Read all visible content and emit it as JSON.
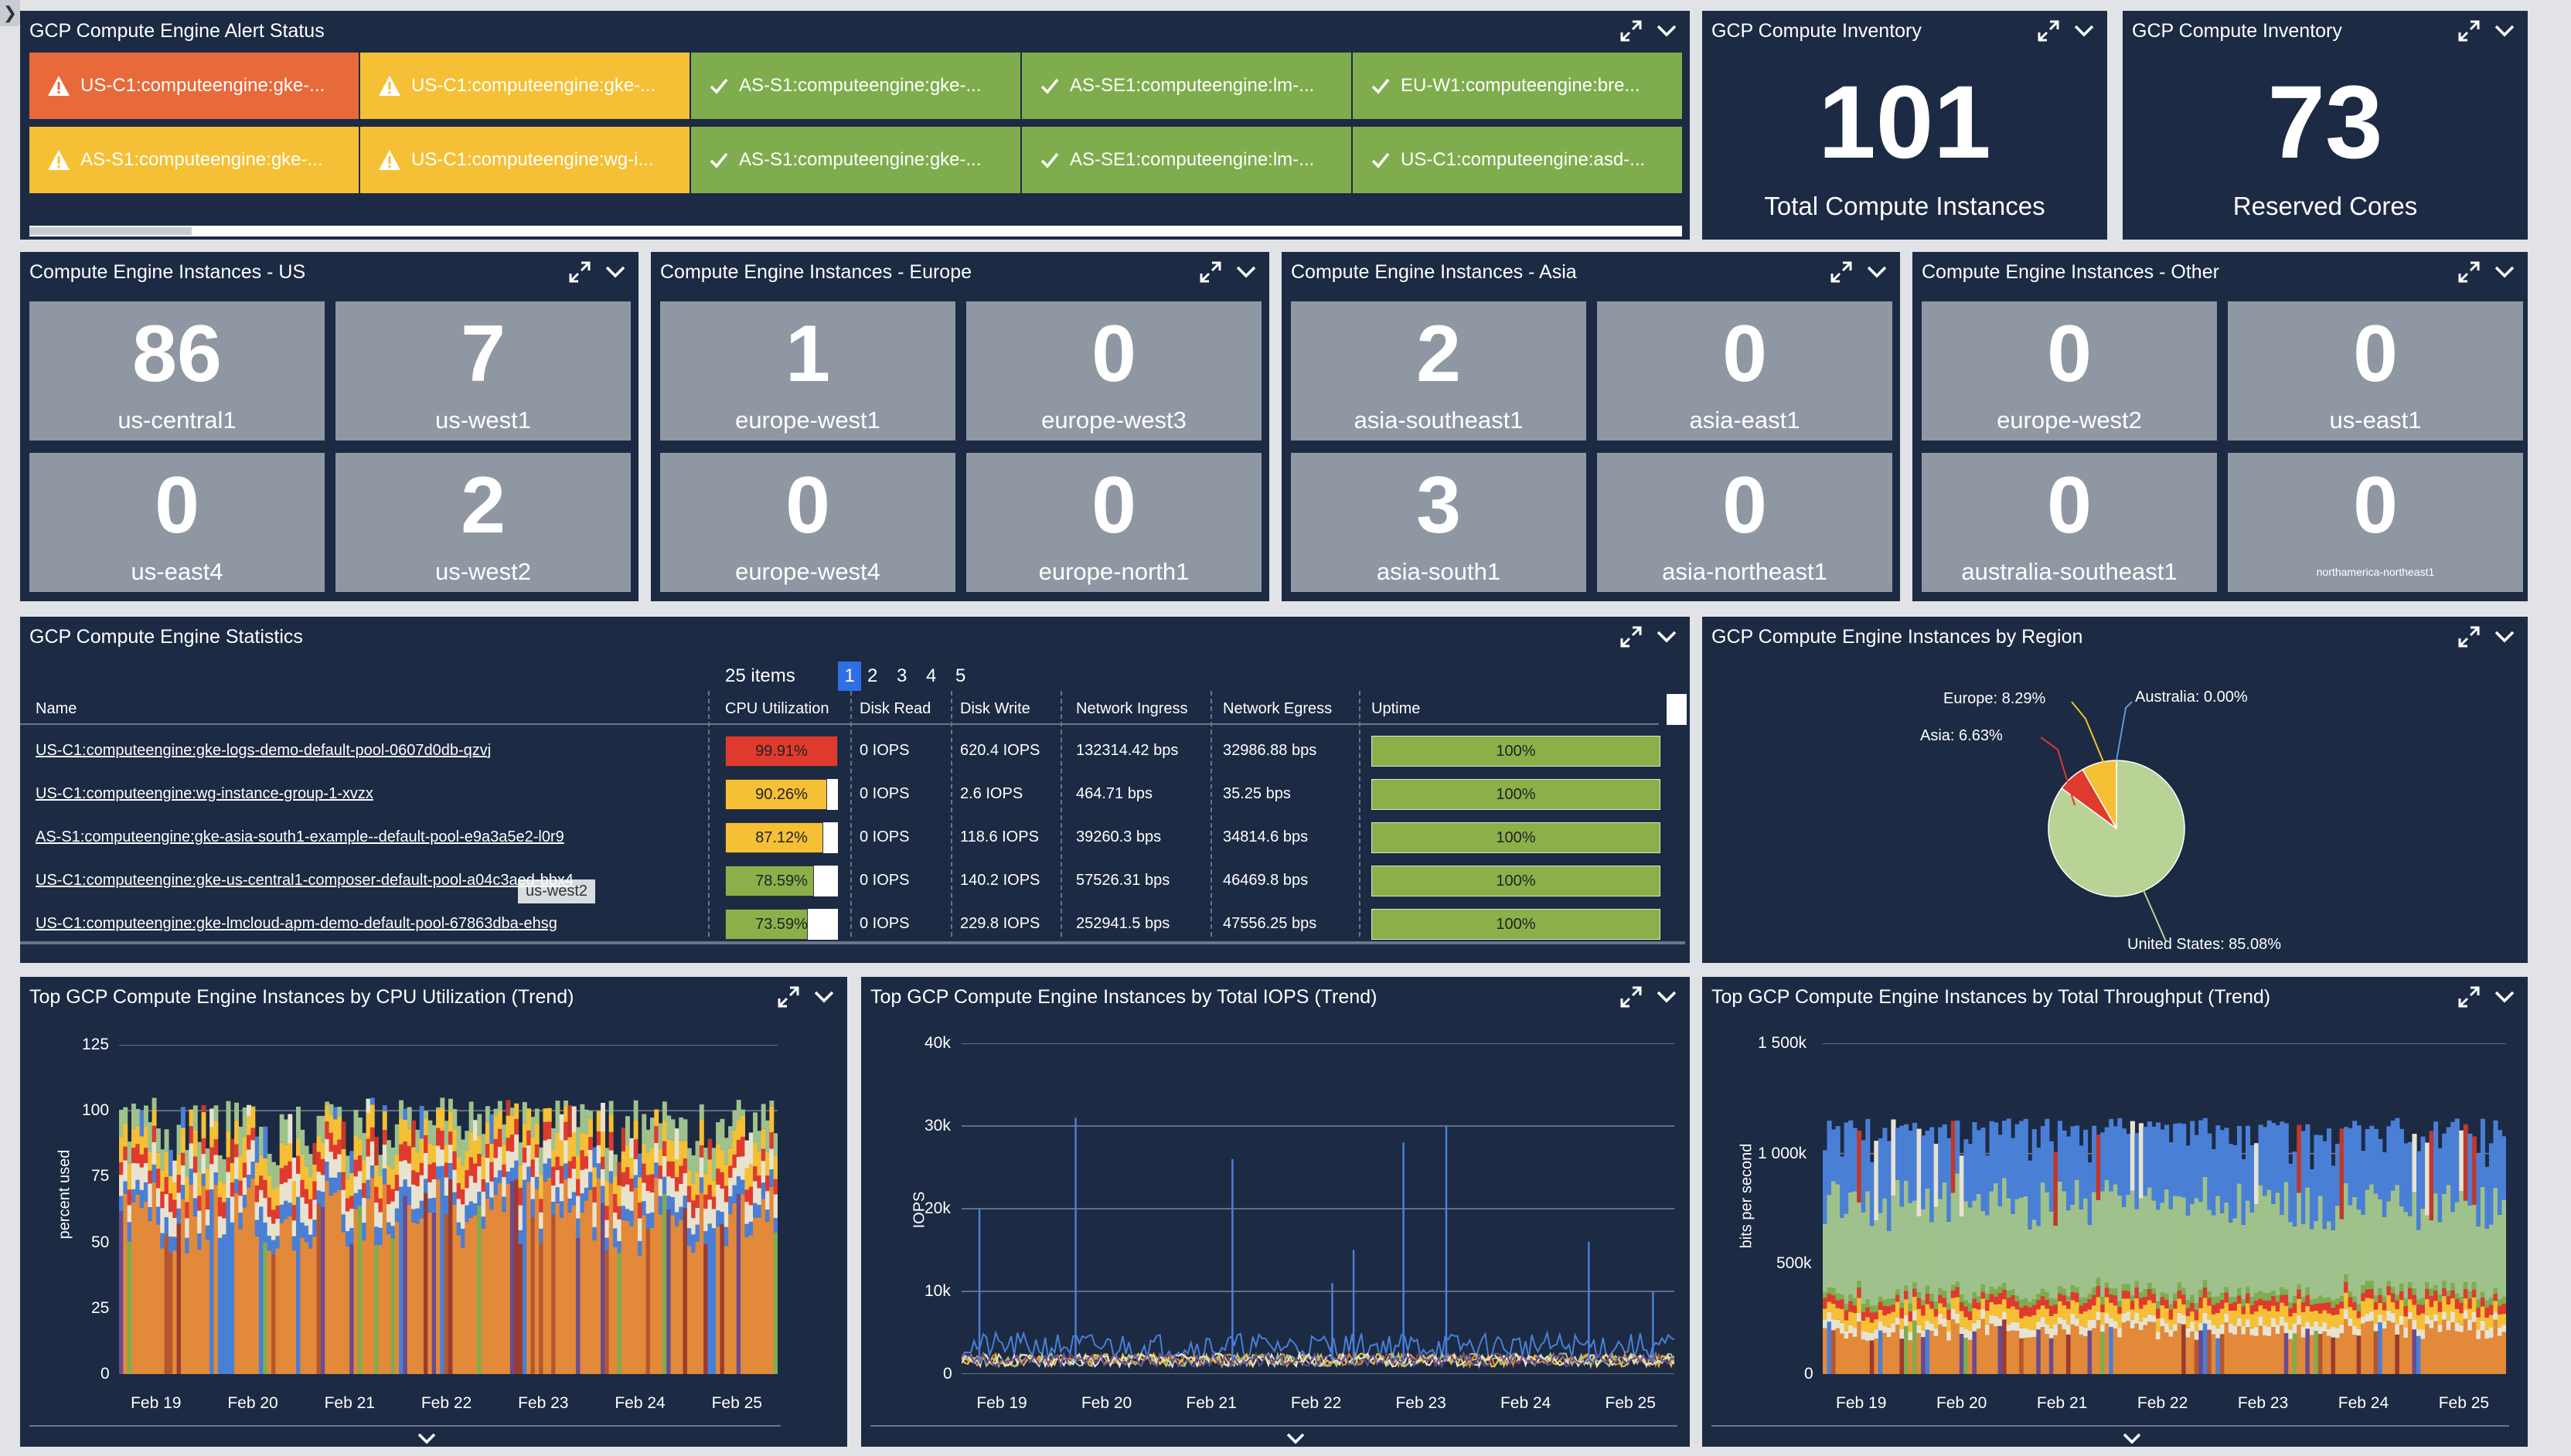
{
  "side_toggle": "❯",
  "alert_status": {
    "title": "GCP Compute Engine Alert Status",
    "rows": [
      [
        {
          "label": "US-C1:computeengine:gke-...",
          "status": "critical",
          "color": "#e8693a"
        },
        {
          "label": "US-C1:computeengine:gke-...",
          "status": "warning",
          "color": "#f5c035"
        },
        {
          "label": "AS-S1:computeengine:gke-...",
          "status": "ok",
          "color": "#7fad4e"
        },
        {
          "label": "AS-SE1:computeengine:lm-...",
          "status": "ok",
          "color": "#7fad4e"
        },
        {
          "label": "EU-W1:computeengine:bre...",
          "status": "ok",
          "color": "#7fad4e"
        }
      ],
      [
        {
          "label": "AS-S1:computeengine:gke-...",
          "status": "warning",
          "color": "#f5c035"
        },
        {
          "label": "US-C1:computeengine:wg-i...",
          "status": "warning",
          "color": "#f5c035"
        },
        {
          "label": "AS-S1:computeengine:gke-...",
          "status": "ok",
          "color": "#7fad4e"
        },
        {
          "label": "AS-SE1:computeengine:lm-...",
          "status": "ok",
          "color": "#7fad4e"
        },
        {
          "label": "US-C1:computeengine:asd-...",
          "status": "ok",
          "color": "#7fad4e"
        }
      ]
    ]
  },
  "inventory_instances": {
    "title": "GCP Compute Inventory",
    "value": "101",
    "label": "Total Compute Instances"
  },
  "inventory_cores": {
    "title": "GCP Compute Inventory",
    "value": "73",
    "label": "Reserved Cores"
  },
  "regions": [
    {
      "title": "Compute Engine Instances - US",
      "tiles": [
        {
          "value": "86",
          "label": "us-central1"
        },
        {
          "value": "7",
          "label": "us-west1"
        },
        {
          "value": "0",
          "label": "us-east4"
        },
        {
          "value": "2",
          "label": "us-west2"
        }
      ]
    },
    {
      "title": "Compute Engine Instances - Europe",
      "tiles": [
        {
          "value": "1",
          "label": "europe-west1"
        },
        {
          "value": "0",
          "label": "europe-west3"
        },
        {
          "value": "0",
          "label": "europe-west4"
        },
        {
          "value": "0",
          "label": "europe-north1"
        }
      ]
    },
    {
      "title": "Compute Engine Instances - Asia",
      "tiles": [
        {
          "value": "2",
          "label": "asia-southeast1"
        },
        {
          "value": "0",
          "label": "asia-east1"
        },
        {
          "value": "3",
          "label": "asia-south1"
        },
        {
          "value": "0",
          "label": "asia-northeast1"
        }
      ]
    },
    {
      "title": "Compute Engine Instances - Other",
      "tiles": [
        {
          "value": "0",
          "label": "europe-west2"
        },
        {
          "value": "0",
          "label": "us-east1"
        },
        {
          "value": "0",
          "label": "australia-southeast1"
        },
        {
          "value": "0",
          "label": "northamerica-northeast1"
        }
      ]
    }
  ],
  "statistics": {
    "title": "GCP Compute Engine Statistics",
    "items_count": "25 items",
    "pages": [
      "1",
      "2",
      "3",
      "4",
      "5"
    ],
    "active_page": "1",
    "tooltip": "us-west2",
    "columns": [
      "Name",
      "CPU Utilization",
      "Disk Read",
      "Disk Write",
      "Network Ingress",
      "Network Egress",
      "Uptime"
    ],
    "rows": [
      {
        "name": "US-C1:computeengine:gke-logs-demo-default-pool-0607d0db-qzvj",
        "cpu": "99.91%",
        "cpu_pct": 99.91,
        "cpu_color": "#e03a2f",
        "disk_read": "0 IOPS",
        "disk_write": "620.4 IOPS",
        "ingress": "132314.42 bps",
        "egress": "32986.88 bps",
        "uptime": "100%"
      },
      {
        "name": "US-C1:computeengine:wg-instance-group-1-xvzx",
        "cpu": "90.26%",
        "cpu_pct": 90.26,
        "cpu_color": "#f5c035",
        "disk_read": "0 IOPS",
        "disk_write": "2.6 IOPS",
        "ingress": "464.71 bps",
        "egress": "35.25 bps",
        "uptime": "100%"
      },
      {
        "name": "AS-S1:computeengine:gke-asia-south1-example--default-pool-e9a3a5e2-l0r9",
        "cpu": "87.12%",
        "cpu_pct": 87.12,
        "cpu_color": "#f5c035",
        "disk_read": "0 IOPS",
        "disk_write": "118.6 IOPS",
        "ingress": "39260.3 bps",
        "egress": "34814.6 bps",
        "uptime": "100%"
      },
      {
        "name": "US-C1:computeengine:gke-us-central1-composer-default-pool-a04c3aed-bbx4",
        "cpu": "78.59%",
        "cpu_pct": 78.59,
        "cpu_color": "#8bb04a",
        "disk_read": "0 IOPS",
        "disk_write": "140.2 IOPS",
        "ingress": "57526.31 bps",
        "egress": "46469.8 bps",
        "uptime": "100%"
      },
      {
        "name": "US-C1:computeengine:gke-lmcloud-apm-demo-default-pool-67863dba-ehsg",
        "cpu": "73.59%",
        "cpu_pct": 73.59,
        "cpu_color": "#8bb04a",
        "disk_read": "0 IOPS",
        "disk_write": "229.8 IOPS",
        "ingress": "252941.5 bps",
        "egress": "47556.25 bps",
        "uptime": "100%"
      }
    ]
  },
  "region_pie": {
    "title": "GCP Compute Engine Instances by Region",
    "chart_data": {
      "type": "pie",
      "slices": [
        {
          "label": "United States: 85.08%",
          "value": 85.08,
          "color": "#b9d296"
        },
        {
          "label": "Asia: 6.63%",
          "value": 6.63,
          "color": "#e03a2f"
        },
        {
          "label": "Europe: 8.29%",
          "value": 8.29,
          "color": "#f5c035"
        },
        {
          "label": "Australia: 0.00%",
          "value": 0.0,
          "color": "#5b9bd5"
        }
      ]
    }
  },
  "trend_cpu": {
    "title": "Top GCP Compute Engine Instances by CPU Utilization (Trend)",
    "chart_data": {
      "type": "area",
      "ylabel": "percent used",
      "yticks": [
        "0",
        "25",
        "50",
        "75",
        "100",
        "125"
      ],
      "ylim": [
        0,
        125
      ],
      "xticks": [
        "Feb 19",
        "Feb 20",
        "Feb 21",
        "Feb 22",
        "Feb 23",
        "Feb 24",
        "Feb 25"
      ],
      "bands": [
        {
          "value": 60,
          "color": "#e2893a"
        },
        {
          "value": 6,
          "color": "#4a7fd6"
        },
        {
          "value": 8,
          "color": "#e8e3d0"
        },
        {
          "value": 6,
          "color": "#e03a2f"
        },
        {
          "value": 8,
          "color": "#f5c035"
        },
        {
          "value": 10,
          "color": "#9fc18b"
        }
      ],
      "max": 104
    }
  },
  "trend_iops": {
    "title": "Top GCP Compute Engine Instances by Total IOPS (Trend)",
    "chart_data": {
      "type": "line",
      "ylabel": "IOPS",
      "yticks": [
        "0",
        "10k",
        "20k",
        "30k",
        "40k"
      ],
      "ylim": [
        0,
        40000
      ],
      "xticks": [
        "Feb 19",
        "Feb 20",
        "Feb 21",
        "Feb 22",
        "Feb 23",
        "Feb 24",
        "Feb 25"
      ],
      "spikes": [
        {
          "x": 0.025,
          "value": 20000
        },
        {
          "x": 0.16,
          "value": 31000
        },
        {
          "x": 0.38,
          "value": 26000
        },
        {
          "x": 0.55,
          "value": 15000
        },
        {
          "x": 0.62,
          "value": 28000
        },
        {
          "x": 0.68,
          "value": 30000
        },
        {
          "x": 0.88,
          "value": 16000
        },
        {
          "x": 0.97,
          "value": 10000
        },
        {
          "x": 0.52,
          "value": 11000
        }
      ],
      "base_color": "#4a7fd6"
    }
  },
  "trend_throughput": {
    "title": "Top GCP Compute Engine Instances by Total Throughput (Trend)",
    "chart_data": {
      "type": "area",
      "ylabel": "bits per second",
      "yticks": [
        "0",
        "500k",
        "1 000k",
        "1 500k"
      ],
      "ylim": [
        0,
        1500000
      ],
      "xticks": [
        "Feb 19",
        "Feb 20",
        "Feb 21",
        "Feb 22",
        "Feb 23",
        "Feb 24",
        "Feb 25"
      ],
      "bands": [
        {
          "value": 200000,
          "color": "#e2893a"
        },
        {
          "value": 40000,
          "color": "#e8e3d0"
        },
        {
          "value": 60000,
          "color": "#f5c035"
        },
        {
          "value": 40000,
          "color": "#e03a2f"
        },
        {
          "value": 30000,
          "color": "#7fad4e"
        },
        {
          "value": 400000,
          "color": "#9fc18b"
        },
        {
          "value": 350000,
          "color": "#4a7fd6"
        }
      ],
      "max": 1150000
    }
  }
}
